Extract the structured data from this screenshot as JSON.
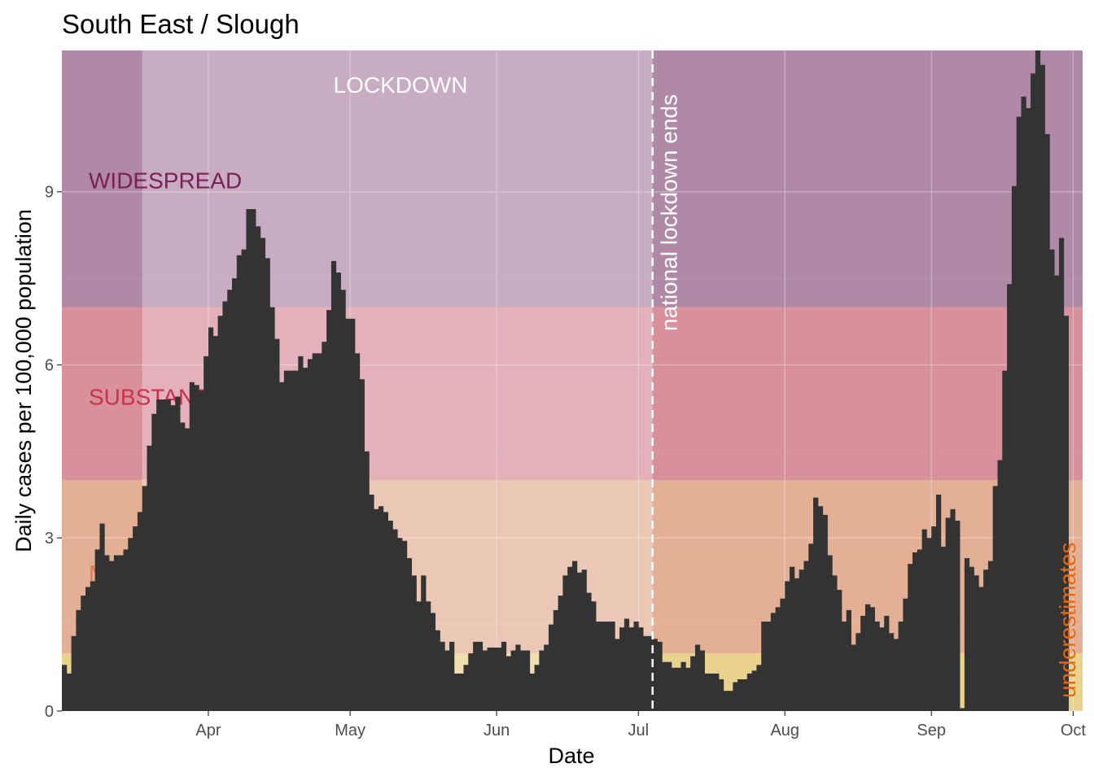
{
  "chart_data": {
    "type": "bar",
    "title": "South East / Slough",
    "xlabel": "Date",
    "ylabel": "Daily cases per 100,000 population",
    "x_start": "2020-03-01",
    "x_end": "2020-10-02",
    "xlim": [
      "2020-03-01",
      "2020-10-03"
    ],
    "ylim": [
      0,
      11.45
    ],
    "grid": true,
    "x_ticks": [
      {
        "date": "2020-04-01",
        "label": "Apr"
      },
      {
        "date": "2020-05-01",
        "label": "May"
      },
      {
        "date": "2020-06-01",
        "label": "Jun"
      },
      {
        "date": "2020-07-01",
        "label": "Jul"
      },
      {
        "date": "2020-08-01",
        "label": "Aug"
      },
      {
        "date": "2020-09-01",
        "label": "Sep"
      },
      {
        "date": "2020-10-01",
        "label": "Oct"
      }
    ],
    "y_ticks": [
      {
        "value": 0,
        "label": "0"
      },
      {
        "value": 3,
        "label": "3"
      },
      {
        "value": 6,
        "label": "6"
      },
      {
        "value": 9,
        "label": "9"
      }
    ],
    "bands": [
      {
        "from": 0,
        "to": 1,
        "color": "#e9d28e",
        "label": ""
      },
      {
        "from": 1,
        "to": 4,
        "color": "#e3b096",
        "label": "M"
      },
      {
        "from": 4,
        "to": 7,
        "color": "#d8909c",
        "label": "SUBSTANTIAL",
        "label_color": "#c8324e"
      },
      {
        "from": 7,
        "to": 11.45,
        "color": "#b089a6",
        "label": "WIDESPREAD",
        "label_color": "#7a2057"
      }
    ],
    "lockdown": {
      "from": "2020-03-18",
      "to": "2020-07-04",
      "label": "LOCKDOWN",
      "color": "#ffffff"
    },
    "lockdown_end_marker": {
      "date": "2020-07-04",
      "label": "national lockdown ends"
    },
    "underestimates_label": "underestimates",
    "underestimates_color": "#e8690f",
    "bar_color": "#333333",
    "values": [
      0.8,
      0.65,
      1.3,
      1.75,
      2.0,
      2.15,
      2.25,
      2.8,
      3.25,
      2.7,
      2.6,
      2.7,
      2.7,
      2.8,
      3.0,
      3.2,
      3.45,
      3.9,
      4.6,
      5.15,
      5.4,
      5.4,
      5.4,
      5.3,
      5.45,
      5.0,
      4.9,
      5.7,
      5.65,
      5.55,
      6.15,
      6.65,
      6.5,
      6.85,
      7.1,
      7.3,
      7.5,
      7.9,
      8.0,
      8.7,
      8.7,
      8.4,
      8.2,
      7.85,
      7.0,
      6.45,
      5.7,
      5.9,
      5.9,
      5.9,
      6.15,
      5.95,
      6.1,
      6.2,
      6.2,
      6.4,
      6.95,
      7.8,
      7.6,
      7.3,
      6.8,
      6.8,
      6.2,
      5.75,
      4.5,
      3.75,
      3.5,
      3.55,
      3.45,
      3.3,
      3.15,
      3.0,
      2.95,
      2.65,
      2.35,
      1.9,
      2.35,
      1.9,
      1.7,
      1.4,
      1.2,
      1.05,
      1.2,
      0.65,
      0.65,
      0.8,
      1.0,
      1.2,
      1.2,
      1.05,
      1.1,
      1.1,
      1.1,
      1.2,
      0.95,
      1.05,
      1.15,
      1.05,
      1.05,
      0.65,
      0.8,
      1.05,
      1.15,
      1.5,
      1.75,
      2.0,
      2.35,
      2.5,
      2.6,
      2.4,
      2.45,
      2.05,
      1.9,
      1.55,
      1.55,
      1.55,
      1.55,
      1.25,
      1.45,
      1.6,
      1.45,
      1.55,
      1.45,
      1.3,
      1.3,
      1.25,
      1.2,
      0.85,
      0.85,
      0.75,
      0.75,
      0.85,
      0.75,
      0.95,
      1.15,
      1.05,
      0.65,
      0.65,
      0.65,
      0.55,
      0.35,
      0.35,
      0.5,
      0.55,
      0.55,
      0.65,
      0.7,
      0.8,
      1.55,
      1.55,
      1.7,
      1.8,
      1.95,
      2.25,
      2.5,
      2.3,
      2.45,
      2.6,
      2.9,
      3.7,
      3.55,
      3.4,
      2.7,
      2.35,
      2.1,
      1.55,
      1.75,
      1.15,
      1.35,
      1.65,
      1.85,
      1.8,
      1.55,
      1.45,
      1.65,
      1.35,
      1.25,
      1.55,
      1.95,
      2.55,
      2.75,
      2.8,
      3.15,
      3.0,
      3.2,
      3.75,
      2.85,
      3.35,
      3.5,
      3.3,
      0.05,
      2.65,
      2.5,
      2.35,
      2.15,
      2.45,
      2.6,
      3.9,
      4.35,
      5.9,
      7.4,
      9.1,
      10.3,
      10.65,
      10.45,
      11.05,
      11.45,
      11.2,
      10.0,
      8.0,
      7.55,
      8.2,
      6.85
    ]
  }
}
